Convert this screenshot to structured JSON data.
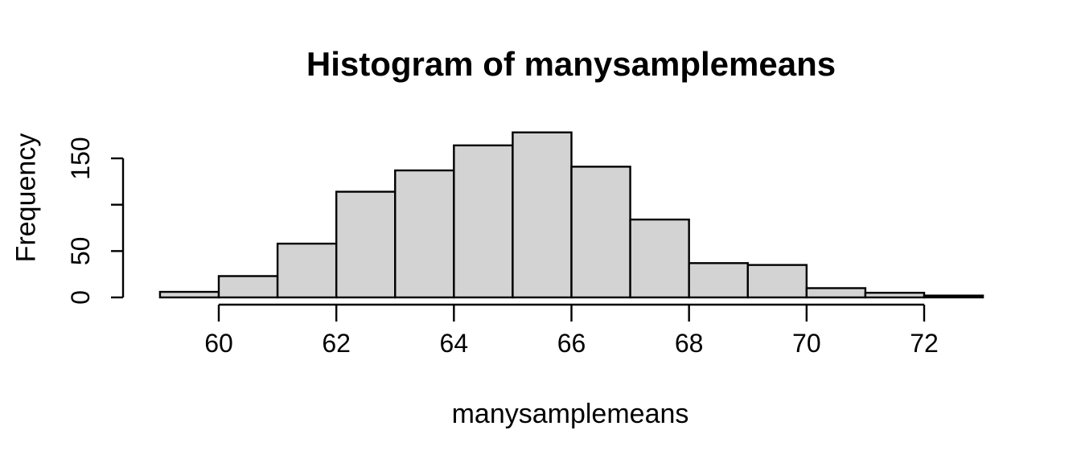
{
  "figure": {
    "background_color": "#ffffff",
    "text_color": "#000000"
  },
  "chart_data": {
    "type": "bar",
    "subtype": "histogram",
    "title": "Histogram of manysamplemeans",
    "xlabel": "manysamplemeans",
    "ylabel": "Frequency",
    "bins": {
      "start": 59,
      "bin_width": 1,
      "edges": [
        59,
        60,
        61,
        62,
        63,
        64,
        65,
        66,
        67,
        68,
        69,
        70,
        71,
        72,
        73
      ],
      "counts": [
        6,
        23,
        58,
        114,
        137,
        164,
        178,
        141,
        84,
        37,
        35,
        10,
        5,
        2
      ]
    },
    "x_ticks": [
      {
        "value": 60,
        "label": "60"
      },
      {
        "value": 62,
        "label": "62"
      },
      {
        "value": 64,
        "label": "64"
      },
      {
        "value": 66,
        "label": "66"
      },
      {
        "value": 68,
        "label": "68"
      },
      {
        "value": 70,
        "label": "70"
      },
      {
        "value": 72,
        "label": "72"
      }
    ],
    "y_ticks": [
      {
        "value": 0,
        "label": "0"
      },
      {
        "value": 50,
        "label": "50"
      },
      {
        "value": 100,
        "label": ""
      },
      {
        "value": 150,
        "label": "150"
      }
    ],
    "xlim": [
      59,
      73
    ],
    "ylim": [
      0,
      185
    ],
    "grid": false,
    "legend": false,
    "bar_fill": "#d3d3d3",
    "bar_stroke": "#000000",
    "axis_color": "#000000"
  }
}
